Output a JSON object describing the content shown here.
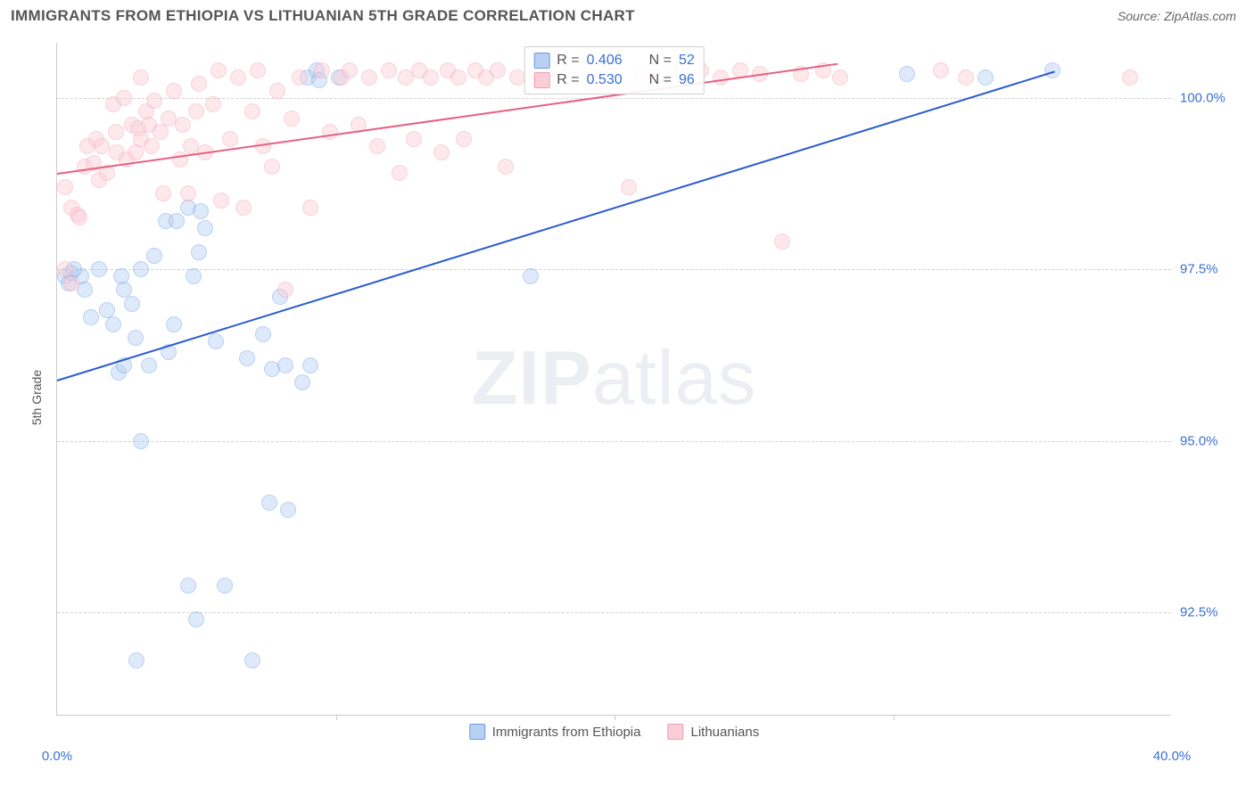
{
  "header": {
    "title": "IMMIGRANTS FROM ETHIOPIA VS LITHUANIAN 5TH GRADE CORRELATION CHART",
    "source": "Source: ZipAtlas.com"
  },
  "watermark": {
    "zip": "ZIP",
    "atlas": "atlas"
  },
  "yaxis": {
    "label": "5th Grade"
  },
  "chart": {
    "type": "scatter",
    "xlim": [
      0,
      40
    ],
    "ylim": [
      91.0,
      100.8
    ],
    "xticks": [
      0,
      10,
      20,
      30,
      40
    ],
    "xtick_labels": [
      "0.0%",
      "",
      "",
      "",
      "40.0%"
    ],
    "yticks": [
      92.5,
      95.0,
      97.5,
      100.0
    ],
    "ytick_labels": [
      "92.5%",
      "95.0%",
      "97.5%",
      "100.0%"
    ],
    "grid_color": "#d0d0d0",
    "background_color": "#ffffff",
    "marker_radius": 9,
    "marker_opacity": 0.45,
    "series": [
      {
        "name": "Immigrants from Ethiopia",
        "color": "#6a9be8",
        "fill": "#b8d0f2",
        "stroke": "#6a9be8",
        "R": "0.406",
        "N": "52",
        "trend": {
          "x1": 0,
          "y1": 95.9,
          "x2": 35.8,
          "y2": 100.4,
          "color": "#2a5cd0",
          "width": 2
        },
        "points": [
          {
            "x": 0.3,
            "y": 97.4
          },
          {
            "x": 0.4,
            "y": 97.3
          },
          {
            "x": 0.5,
            "y": 97.45
          },
          {
            "x": 0.85,
            "y": 97.4
          },
          {
            "x": 0.6,
            "y": 97.5
          },
          {
            "x": 1.0,
            "y": 97.2
          },
          {
            "x": 1.2,
            "y": 96.8
          },
          {
            "x": 1.8,
            "y": 96.9
          },
          {
            "x": 1.5,
            "y": 97.5
          },
          {
            "x": 2.0,
            "y": 96.7
          },
          {
            "x": 2.3,
            "y": 97.4
          },
          {
            "x": 2.2,
            "y": 96.0
          },
          {
            "x": 2.4,
            "y": 96.1
          },
          {
            "x": 2.8,
            "y": 96.5
          },
          {
            "x": 2.7,
            "y": 97.0
          },
          {
            "x": 2.4,
            "y": 97.2
          },
          {
            "x": 3.0,
            "y": 97.5
          },
          {
            "x": 3.5,
            "y": 97.7
          },
          {
            "x": 3.0,
            "y": 95.0
          },
          {
            "x": 3.3,
            "y": 96.1
          },
          {
            "x": 3.9,
            "y": 98.2
          },
          {
            "x": 4.3,
            "y": 98.2
          },
          {
            "x": 4.0,
            "y": 96.3
          },
          {
            "x": 4.2,
            "y": 96.7
          },
          {
            "x": 4.7,
            "y": 98.4
          },
          {
            "x": 5.1,
            "y": 97.75
          },
          {
            "x": 5.3,
            "y": 98.1
          },
          {
            "x": 5.15,
            "y": 98.35
          },
          {
            "x": 4.9,
            "y": 97.4
          },
          {
            "x": 5.7,
            "y": 96.45
          },
          {
            "x": 6.0,
            "y": 92.9
          },
          {
            "x": 5.0,
            "y": 92.4
          },
          {
            "x": 4.7,
            "y": 92.9
          },
          {
            "x": 2.85,
            "y": 91.8
          },
          {
            "x": 6.8,
            "y": 96.2
          },
          {
            "x": 7.4,
            "y": 96.55
          },
          {
            "x": 7.6,
            "y": 94.1
          },
          {
            "x": 7.7,
            "y": 96.05
          },
          {
            "x": 8.2,
            "y": 96.1
          },
          {
            "x": 8.8,
            "y": 95.85
          },
          {
            "x": 8.3,
            "y": 94.0
          },
          {
            "x": 9.1,
            "y": 96.1
          },
          {
            "x": 8.0,
            "y": 97.1
          },
          {
            "x": 7.0,
            "y": 91.8
          },
          {
            "x": 9.0,
            "y": 100.3
          },
          {
            "x": 9.3,
            "y": 100.4
          },
          {
            "x": 9.4,
            "y": 100.25
          },
          {
            "x": 17.0,
            "y": 97.4
          },
          {
            "x": 30.5,
            "y": 100.35
          },
          {
            "x": 33.3,
            "y": 100.3
          },
          {
            "x": 35.7,
            "y": 100.4
          },
          {
            "x": 10.1,
            "y": 100.3
          }
        ]
      },
      {
        "name": "Lithuanians",
        "color": "#f29db0",
        "fill": "#fbcdd7",
        "stroke": "#f29db0",
        "R": "0.530",
        "N": "96",
        "trend": {
          "x1": 0,
          "y1": 98.9,
          "x2": 28.0,
          "y2": 100.5,
          "color": "#e85f7f",
          "width": 2
        },
        "points": [
          {
            "x": 0.3,
            "y": 98.7
          },
          {
            "x": 0.3,
            "y": 97.5
          },
          {
            "x": 0.5,
            "y": 98.4
          },
          {
            "x": 0.5,
            "y": 97.3
          },
          {
            "x": 0.75,
            "y": 98.3
          },
          {
            "x": 0.8,
            "y": 98.25
          },
          {
            "x": 1.0,
            "y": 99.0
          },
          {
            "x": 1.1,
            "y": 99.3
          },
          {
            "x": 1.3,
            "y": 99.05
          },
          {
            "x": 1.4,
            "y": 99.4
          },
          {
            "x": 1.5,
            "y": 98.8
          },
          {
            "x": 1.6,
            "y": 99.3
          },
          {
            "x": 1.8,
            "y": 98.9
          },
          {
            "x": 2.0,
            "y": 99.9
          },
          {
            "x": 2.1,
            "y": 99.5
          },
          {
            "x": 2.15,
            "y": 99.2
          },
          {
            "x": 2.4,
            "y": 100.0
          },
          {
            "x": 2.5,
            "y": 99.1
          },
          {
            "x": 2.7,
            "y": 99.6
          },
          {
            "x": 2.8,
            "y": 99.2
          },
          {
            "x": 2.9,
            "y": 99.55
          },
          {
            "x": 3.0,
            "y": 100.3
          },
          {
            "x": 3.0,
            "y": 99.4
          },
          {
            "x": 3.2,
            "y": 99.8
          },
          {
            "x": 3.3,
            "y": 99.6
          },
          {
            "x": 3.4,
            "y": 99.3
          },
          {
            "x": 3.5,
            "y": 99.95
          },
          {
            "x": 3.7,
            "y": 99.5
          },
          {
            "x": 3.8,
            "y": 98.6
          },
          {
            "x": 4.0,
            "y": 99.7
          },
          {
            "x": 4.2,
            "y": 100.1
          },
          {
            "x": 4.4,
            "y": 99.1
          },
          {
            "x": 4.5,
            "y": 99.6
          },
          {
            "x": 4.7,
            "y": 98.6
          },
          {
            "x": 4.8,
            "y": 99.3
          },
          {
            "x": 5.0,
            "y": 99.8
          },
          {
            "x": 5.1,
            "y": 100.2
          },
          {
            "x": 5.3,
            "y": 99.2
          },
          {
            "x": 5.6,
            "y": 99.9
          },
          {
            "x": 5.8,
            "y": 100.4
          },
          {
            "x": 5.9,
            "y": 98.5
          },
          {
            "x": 6.2,
            "y": 99.4
          },
          {
            "x": 6.5,
            "y": 100.3
          },
          {
            "x": 6.7,
            "y": 98.4
          },
          {
            "x": 7.0,
            "y": 99.8
          },
          {
            "x": 7.2,
            "y": 100.4
          },
          {
            "x": 7.4,
            "y": 99.3
          },
          {
            "x": 7.7,
            "y": 99.0
          },
          {
            "x": 7.9,
            "y": 100.1
          },
          {
            "x": 8.2,
            "y": 97.2
          },
          {
            "x": 8.4,
            "y": 99.7
          },
          {
            "x": 8.7,
            "y": 100.3
          },
          {
            "x": 9.1,
            "y": 98.4
          },
          {
            "x": 9.5,
            "y": 100.4
          },
          {
            "x": 9.8,
            "y": 99.5
          },
          {
            "x": 10.2,
            "y": 100.3
          },
          {
            "x": 10.5,
            "y": 100.4
          },
          {
            "x": 10.8,
            "y": 99.6
          },
          {
            "x": 11.2,
            "y": 100.3
          },
          {
            "x": 11.5,
            "y": 99.3
          },
          {
            "x": 11.9,
            "y": 100.4
          },
          {
            "x": 12.3,
            "y": 98.9
          },
          {
            "x": 12.5,
            "y": 100.3
          },
          {
            "x": 12.8,
            "y": 99.4
          },
          {
            "x": 13.0,
            "y": 100.4
          },
          {
            "x": 13.4,
            "y": 100.3
          },
          {
            "x": 13.8,
            "y": 99.2
          },
          {
            "x": 14.0,
            "y": 100.4
          },
          {
            "x": 14.4,
            "y": 100.3
          },
          {
            "x": 14.6,
            "y": 99.4
          },
          {
            "x": 15.0,
            "y": 100.4
          },
          {
            "x": 15.4,
            "y": 100.3
          },
          {
            "x": 15.8,
            "y": 100.4
          },
          {
            "x": 16.1,
            "y": 99.0
          },
          {
            "x": 16.5,
            "y": 100.3
          },
          {
            "x": 17.3,
            "y": 100.35
          },
          {
            "x": 17.7,
            "y": 100.4
          },
          {
            "x": 18.2,
            "y": 100.3
          },
          {
            "x": 18.7,
            "y": 100.4
          },
          {
            "x": 19.3,
            "y": 100.3
          },
          {
            "x": 19.8,
            "y": 100.4
          },
          {
            "x": 20.5,
            "y": 98.7
          },
          {
            "x": 21.0,
            "y": 100.35
          },
          {
            "x": 21.5,
            "y": 100.3
          },
          {
            "x": 22.2,
            "y": 100.4
          },
          {
            "x": 23.1,
            "y": 100.4
          },
          {
            "x": 23.8,
            "y": 100.3
          },
          {
            "x": 24.5,
            "y": 100.4
          },
          {
            "x": 25.2,
            "y": 100.35
          },
          {
            "x": 26.0,
            "y": 97.9
          },
          {
            "x": 26.7,
            "y": 100.35
          },
          {
            "x": 27.5,
            "y": 100.4
          },
          {
            "x": 28.1,
            "y": 100.3
          },
          {
            "x": 31.7,
            "y": 100.4
          },
          {
            "x": 32.6,
            "y": 100.3
          },
          {
            "x": 38.5,
            "y": 100.3
          }
        ]
      }
    ],
    "legend_top": {
      "R_prefix": "R = ",
      "N_prefix": "N = "
    },
    "legend_bottom": {
      "items": [
        "Immigrants from Ethiopia",
        "Lithuanians"
      ]
    }
  }
}
